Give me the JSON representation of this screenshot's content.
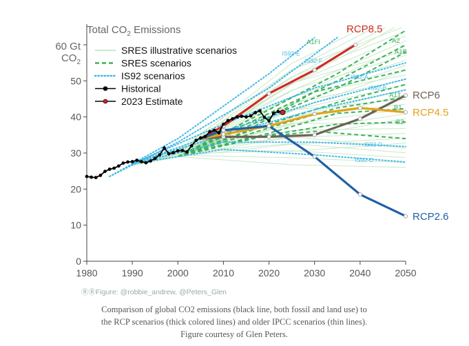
{
  "chart_data": {
    "type": "line",
    "title": "Total CO",
    "title_sub": "2",
    "title_tail": " Emissions",
    "ylabel_line1": "60 Gt",
    "ylabel_line2": "CO",
    "ylabel_sub": "2",
    "xlim": [
      1980,
      2050
    ],
    "ylim": [
      0,
      60
    ],
    "x_ticks": [
      1980,
      1990,
      2000,
      2010,
      2020,
      2030,
      2040,
      2050
    ],
    "y_ticks": [
      0,
      10,
      20,
      30,
      40,
      50
    ],
    "y_tick_labels": [
      "0",
      "10",
      "20",
      "30",
      "40",
      "50"
    ],
    "legend": [
      {
        "label": "SRES illustrative scenarios",
        "style": "thin",
        "color": "#b8e0b8"
      },
      {
        "label": "SRES scenarios",
        "style": "dashed",
        "color": "#3cb05a"
      },
      {
        "label": "IS92 scenarios",
        "style": "dotted",
        "color": "#3fb8e6"
      },
      {
        "label": "Historical",
        "style": "line-dot",
        "color": "#000000"
      },
      {
        "label": "2023 Estimate",
        "style": "line-dot",
        "color": "#d42020"
      }
    ],
    "historical": {
      "x": [
        1980,
        1981,
        1982,
        1983,
        1984,
        1985,
        1986,
        1987,
        1988,
        1989,
        1990,
        1991,
        1992,
        1993,
        1994,
        1995,
        1996,
        1997,
        1998,
        1999,
        2000,
        2001,
        2002,
        2003,
        2004,
        2005,
        2006,
        2007,
        2008,
        2009,
        2010,
        2011,
        2012,
        2013,
        2014,
        2015,
        2016,
        2017,
        2018,
        2019,
        2020,
        2021,
        2022
      ],
      "y": [
        23.5,
        23.3,
        23.2,
        23.8,
        24.9,
        25.5,
        25.8,
        26.4,
        27.2,
        27.5,
        27.6,
        28.0,
        27.6,
        27.3,
        27.8,
        28.5,
        29.5,
        31.4,
        29.8,
        30.1,
        30.6,
        30.7,
        30.3,
        32.0,
        33.5,
        34.2,
        34.6,
        35.9,
        36.3,
        35.6,
        38.0,
        39.0,
        39.5,
        40.0,
        40.2,
        40.0,
        40.3,
        41.2,
        41.7,
        39.9,
        38.9,
        41.0,
        41.5
      ]
    },
    "estimate_2023": {
      "x": 2023,
      "y": 41.3
    },
    "rcp": [
      {
        "name": "RCP8.5",
        "color": "#d12a26",
        "x": [
          2005,
          2010,
          2020,
          2030,
          2039
        ],
        "y": [
          34,
          37.5,
          46.5,
          53,
          60
        ]
      },
      {
        "name": "RCP6",
        "color": "#6d6258",
        "x": [
          2005,
          2010,
          2020,
          2030,
          2040,
          2050
        ],
        "y": [
          34,
          34.5,
          34.5,
          35,
          39.5,
          46
        ]
      },
      {
        "name": "RCP4.5",
        "color": "#e3a21a",
        "x": [
          2005,
          2010,
          2020,
          2030,
          2040,
          2050
        ],
        "y": [
          34,
          35.2,
          37.5,
          40.8,
          42.5,
          41.3
        ]
      },
      {
        "name": "RCP2.6",
        "color": "#1e5fa6",
        "x": [
          2005,
          2010,
          2020,
          2030,
          2040,
          2050
        ],
        "y": [
          34,
          36.3,
          37.5,
          29,
          18.5,
          12.5
        ]
      }
    ],
    "sres_markers": [
      {
        "name": "A1FI",
        "x": 2036,
        "y": 61
      },
      {
        "name": "A2",
        "x": 2049,
        "y": 60
      },
      {
        "name": "A1B",
        "x": 2049,
        "y": 58
      },
      {
        "name": "A1T",
        "x": 2048,
        "y": 45.5
      },
      {
        "name": "B1",
        "x": 2048,
        "y": 42.3
      },
      {
        "name": "B2",
        "x": 2048,
        "y": 38.6
      }
    ],
    "is92_markers": [
      {
        "name": "IS92-E",
        "x": 2025,
        "y": 57
      },
      {
        "name": "IS92-F",
        "x": 2030,
        "y": 55
      },
      {
        "name": "IS92-A",
        "x": 2040,
        "y": 50.5
      },
      {
        "name": "IS92-B",
        "x": 2044,
        "y": 47.5
      },
      {
        "name": "IS92-D",
        "x": 2043,
        "y": 31.8
      },
      {
        "name": "IS92-C",
        "x": 2041,
        "y": 27.5
      }
    ],
    "credit": "Figure: @robbie_andrew, @Peters_Glen"
  },
  "caption": "Comparison of global CO2 emissions (black line, both fossil and land use) to the RCP scenarios (thick colored lines) and older IPCC scenarios (thin lines). Figure courtesy of Glen Peters."
}
